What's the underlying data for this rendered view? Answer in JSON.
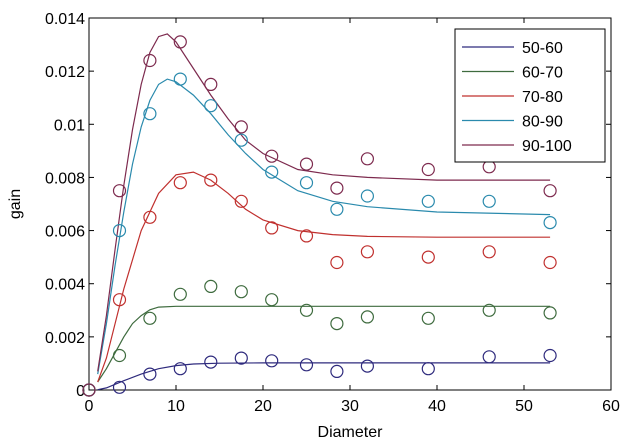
{
  "chart_data": {
    "type": "scatter",
    "xlabel": "Diameter",
    "ylabel": "gain",
    "xlim": [
      0,
      60
    ],
    "ylim": [
      0,
      0.014
    ],
    "x_ticks": [
      0,
      10,
      20,
      30,
      40,
      50,
      60
    ],
    "y_ticks": [
      0,
      0.002,
      0.004,
      0.006,
      0.008,
      0.01,
      0.012,
      0.014
    ],
    "x_tick_labels": [
      "0",
      "10",
      "20",
      "30",
      "40",
      "50",
      "60"
    ],
    "y_tick_labels": [
      "0",
      "0.002",
      "0.004",
      "0.006",
      "0.008",
      "0.01",
      "0.012",
      "0.014"
    ],
    "grid": false,
    "legend_position": "top-right",
    "x": [
      0,
      3.5,
      7,
      10.5,
      14,
      17.5,
      21,
      25,
      28.5,
      32,
      39,
      46,
      53
    ],
    "series": [
      {
        "name": "50-60",
        "color": "#2e2a7d",
        "points": [
          0,
          0.0001,
          0.0006,
          0.0008,
          0.00105,
          0.0012,
          0.0011,
          0.00095,
          0.0007,
          0.0009,
          0.0008,
          0.00125,
          0.0013
        ],
        "fit": {
          "x": [
            1,
            2,
            4,
            6,
            8,
            10,
            12,
            15,
            20,
            30,
            40,
            53
          ],
          "y": [
            1e-05,
            8e-05,
            0.00035,
            0.0006,
            0.0008,
            0.00092,
            0.00098,
            0.00101,
            0.00102,
            0.00102,
            0.00102,
            0.00102
          ]
        }
      },
      {
        "name": "60-70",
        "color": "#3e6b3e",
        "points": [
          0,
          0.0013,
          0.0027,
          0.0036,
          0.0039,
          0.0037,
          0.0034,
          0.003,
          0.0025,
          0.00275,
          0.0027,
          0.003,
          0.0029
        ],
        "fit": {
          "x": [
            1,
            2,
            3,
            4,
            5,
            6,
            7,
            8,
            10,
            12,
            20,
            30,
            40,
            53
          ],
          "y": [
            0.0003,
            0.0008,
            0.0014,
            0.002,
            0.0025,
            0.0028,
            0.00302,
            0.00312,
            0.00315,
            0.00315,
            0.00315,
            0.00315,
            0.00315,
            0.00315
          ]
        }
      },
      {
        "name": "70-80",
        "color": "#c0302e",
        "points": [
          0,
          0.0034,
          0.0065,
          0.0078,
          0.0079,
          0.0071,
          0.0061,
          0.0058,
          0.0048,
          0.0052,
          0.005,
          0.0052,
          0.0048
        ],
        "fit": {
          "x": [
            1,
            2,
            4,
            6,
            8,
            10,
            12,
            14,
            16,
            18,
            20,
            24,
            28,
            32,
            40,
            53
          ],
          "y": [
            0.0003,
            0.0012,
            0.0038,
            0.006,
            0.0074,
            0.0081,
            0.0082,
            0.0079,
            0.0074,
            0.0068,
            0.0064,
            0.006,
            0.00585,
            0.00578,
            0.00575,
            0.00575
          ]
        }
      },
      {
        "name": "80-90",
        "color": "#2a8aad",
        "points": [
          0,
          0.006,
          0.0104,
          0.0117,
          0.0107,
          0.0094,
          0.0082,
          0.0078,
          0.0068,
          0.0073,
          0.0071,
          0.0071,
          0.0063
        ],
        "fit": {
          "x": [
            1,
            2,
            3,
            4,
            5,
            6,
            7,
            8,
            9,
            10,
            12,
            14,
            16,
            18,
            20,
            24,
            28,
            32,
            40,
            53
          ],
          "y": [
            0.0006,
            0.0025,
            0.0047,
            0.0067,
            0.0085,
            0.0099,
            0.0109,
            0.0115,
            0.0117,
            0.0116,
            0.0111,
            0.0104,
            0.0096,
            0.0089,
            0.0083,
            0.0075,
            0.0071,
            0.0069,
            0.0067,
            0.0066
          ]
        }
      },
      {
        "name": "90-100",
        "color": "#7d2a4e",
        "points": [
          0,
          0.0075,
          0.0124,
          0.0131,
          0.0115,
          0.0099,
          0.0088,
          0.0085,
          0.0076,
          0.0087,
          0.0083,
          0.0084,
          0.0075
        ],
        "fit": {
          "x": [
            1,
            2,
            3,
            4,
            5,
            6,
            7,
            8,
            9,
            10,
            12,
            14,
            16,
            18,
            20,
            24,
            28,
            32,
            40,
            53
          ],
          "y": [
            0.0007,
            0.0028,
            0.0053,
            0.0077,
            0.0098,
            0.0115,
            0.0127,
            0.0133,
            0.0134,
            0.0131,
            0.0121,
            0.0111,
            0.0102,
            0.0094,
            0.0089,
            0.0083,
            0.0081,
            0.008,
            0.0079,
            0.0079
          ]
        }
      }
    ]
  }
}
